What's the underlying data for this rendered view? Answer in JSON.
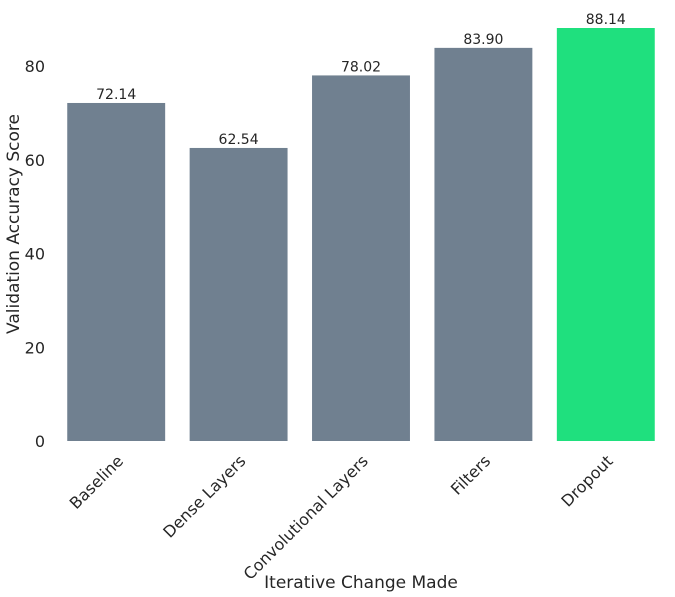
{
  "chart_data": {
    "type": "bar",
    "categories": [
      "Baseline",
      "Dense Layers",
      "Convolutional Layers",
      "Filters",
      "Dropout"
    ],
    "values": [
      72.14,
      62.54,
      78.02,
      83.9,
      88.14
    ],
    "value_labels": [
      "72.14",
      "62.54",
      "78.02",
      "83.90",
      "88.14"
    ],
    "xlabel": "Iterative Change Made",
    "ylabel": "Validation Accuracy Score",
    "ylim": [
      0,
      88.14
    ],
    "yticks": [
      0,
      20,
      40,
      60,
      80
    ],
    "grid": false,
    "colors": {
      "default_bar": "#708090",
      "highlight_bar": "#1FE07E",
      "text": "#262626",
      "background": "#ffffff"
    },
    "highlight_category": "Dropout"
  }
}
